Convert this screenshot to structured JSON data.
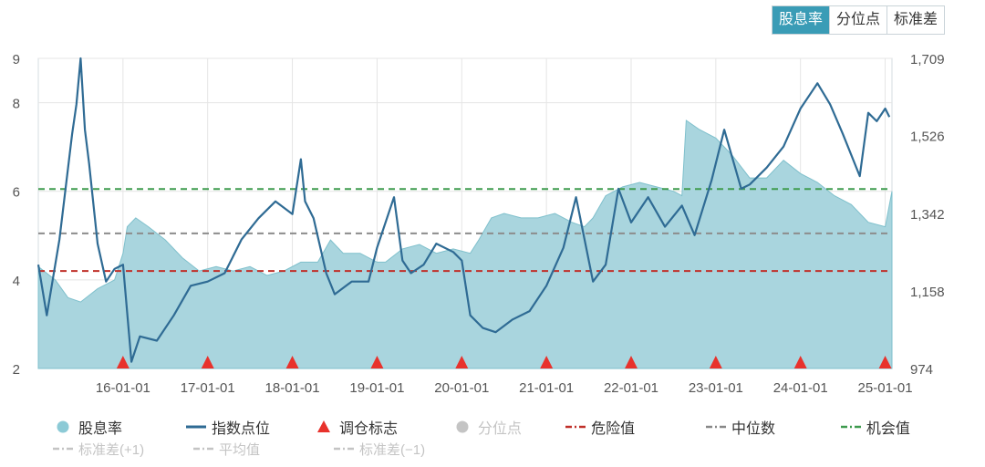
{
  "tabs": [
    {
      "label": "股息率",
      "active": true
    },
    {
      "label": "分位点",
      "active": false
    },
    {
      "label": "标准差",
      "active": false
    }
  ],
  "chart_data": {
    "type": "area+line",
    "left_axis": {
      "ticks": [
        "9",
        "8",
        "6",
        "4",
        "2"
      ],
      "range": [
        2,
        9
      ]
    },
    "right_axis": {
      "ticks": [
        "1,709",
        "1,526",
        "1,342",
        "1,158",
        "974"
      ],
      "range": [
        974,
        1709
      ]
    },
    "x_ticks": [
      "16-01-01",
      "17-01-01",
      "18-01-01",
      "19-01-01",
      "20-01-01",
      "21-01-01",
      "22-01-01",
      "23-01-01",
      "24-01-01",
      "25-01-01"
    ],
    "reference_lines": {
      "danger": 4.2,
      "median": 5.05,
      "opportunity": 6.05
    },
    "rebalance_markers": [
      "16-01-01",
      "17-01-01",
      "18-01-01",
      "19-01-01",
      "20-01-01",
      "21-01-01",
      "22-01-01",
      "23-01-01",
      "24-01-01",
      "25-01-01"
    ],
    "dividend_yield": {
      "name": "股息率",
      "x": [
        2015.0,
        2015.2,
        2015.35,
        2015.5,
        2015.7,
        2015.9,
        2016.0,
        2016.05,
        2016.15,
        2016.3,
        2016.5,
        2016.7,
        2016.9,
        2017.1,
        2017.3,
        2017.5,
        2017.7,
        2017.9,
        2018.1,
        2018.3,
        2018.45,
        2018.6,
        2018.8,
        2019.0,
        2019.1,
        2019.3,
        2019.5,
        2019.7,
        2019.9,
        2020.1,
        2020.2,
        2020.35,
        2020.5,
        2020.7,
        2020.9,
        2021.1,
        2021.3,
        2021.45,
        2021.55,
        2021.7,
        2021.9,
        2022.1,
        2022.3,
        2022.5,
        2022.6,
        2022.65,
        2022.8,
        2023.0,
        2023.2,
        2023.4,
        2023.6,
        2023.8,
        2024.0,
        2024.2,
        2024.4,
        2024.6,
        2024.8,
        2025.0,
        2025.08
      ],
      "values": [
        4.3,
        4.0,
        3.6,
        3.5,
        3.8,
        4.0,
        4.6,
        5.2,
        5.4,
        5.2,
        4.9,
        4.5,
        4.2,
        4.3,
        4.2,
        4.3,
        4.1,
        4.2,
        4.4,
        4.4,
        4.9,
        4.6,
        4.6,
        4.4,
        4.4,
        4.7,
        4.8,
        4.6,
        4.7,
        4.6,
        4.9,
        5.4,
        5.5,
        5.4,
        5.4,
        5.5,
        5.3,
        5.2,
        5.4,
        5.9,
        6.1,
        6.2,
        6.1,
        6.0,
        5.9,
        7.6,
        7.4,
        7.2,
        6.8,
        6.3,
        6.3,
        6.7,
        6.4,
        6.2,
        5.9,
        5.7,
        5.3,
        5.2,
        6.0
      ]
    },
    "index_points": {
      "name": "指数点位",
      "x": [
        2015.0,
        2015.1,
        2015.25,
        2015.4,
        2015.45,
        2015.5,
        2015.55,
        2015.6,
        2015.7,
        2015.8,
        2015.9,
        2016.0,
        2016.1,
        2016.2,
        2016.4,
        2016.6,
        2016.8,
        2017.0,
        2017.2,
        2017.4,
        2017.6,
        2017.8,
        2018.0,
        2018.1,
        2018.15,
        2018.25,
        2018.4,
        2018.5,
        2018.7,
        2018.9,
        2019.0,
        2019.2,
        2019.3,
        2019.4,
        2019.55,
        2019.7,
        2019.9,
        2020.0,
        2020.1,
        2020.25,
        2020.4,
        2020.6,
        2020.8,
        2021.0,
        2021.2,
        2021.35,
        2021.55,
        2021.7,
        2021.85,
        2022.0,
        2022.2,
        2022.4,
        2022.6,
        2022.75,
        2022.95,
        2023.1,
        2023.3,
        2023.4,
        2023.6,
        2023.8,
        2024.0,
        2024.2,
        2024.35,
        2024.5,
        2024.7,
        2024.8,
        2024.9,
        2025.0,
        2025.05
      ],
      "values": [
        1220,
        1100,
        1280,
        1530,
        1600,
        1709,
        1540,
        1460,
        1270,
        1180,
        1210,
        1220,
        990,
        1050,
        1040,
        1100,
        1170,
        1180,
        1200,
        1280,
        1330,
        1370,
        1340,
        1470,
        1370,
        1330,
        1200,
        1150,
        1180,
        1180,
        1260,
        1380,
        1230,
        1200,
        1220,
        1270,
        1250,
        1230,
        1100,
        1070,
        1060,
        1090,
        1110,
        1170,
        1260,
        1380,
        1180,
        1220,
        1400,
        1320,
        1380,
        1310,
        1360,
        1290,
        1420,
        1540,
        1400,
        1410,
        1450,
        1500,
        1590,
        1650,
        1600,
        1530,
        1430,
        1580,
        1560,
        1590,
        1570
      ]
    }
  },
  "legend": {
    "row1": [
      {
        "label": "股息率",
        "kind": "dot",
        "color": "#8ccad6"
      },
      {
        "label": "指数点位",
        "kind": "line",
        "color": "#2f6b94"
      },
      {
        "label": "调仓标志",
        "kind": "triangle",
        "color": "#e8322c"
      },
      {
        "label": "分位点",
        "kind": "dot",
        "color": "#c4c4c4",
        "dim": true
      },
      {
        "label": "危险值",
        "kind": "dash",
        "color": "#c0302a"
      },
      {
        "label": "中位数",
        "kind": "dash",
        "color": "#888888"
      },
      {
        "label": "机会值",
        "kind": "dash",
        "color": "#3f9b4f"
      }
    ],
    "row2": [
      {
        "label": "标准差(+1)",
        "kind": "dash",
        "color": "#c4c4c4",
        "dim": true
      },
      {
        "label": "平均值",
        "kind": "dash",
        "color": "#c4c4c4",
        "dim": true
      },
      {
        "label": "标准差(−1)",
        "kind": "dash",
        "color": "#c4c4c4",
        "dim": true
      }
    ]
  },
  "colors": {
    "area": "#a9d5de",
    "area_edge": "#7fc0cc",
    "index_line": "#2f6b94",
    "marker": "#e8322c",
    "grid": "#e5e5e5"
  }
}
